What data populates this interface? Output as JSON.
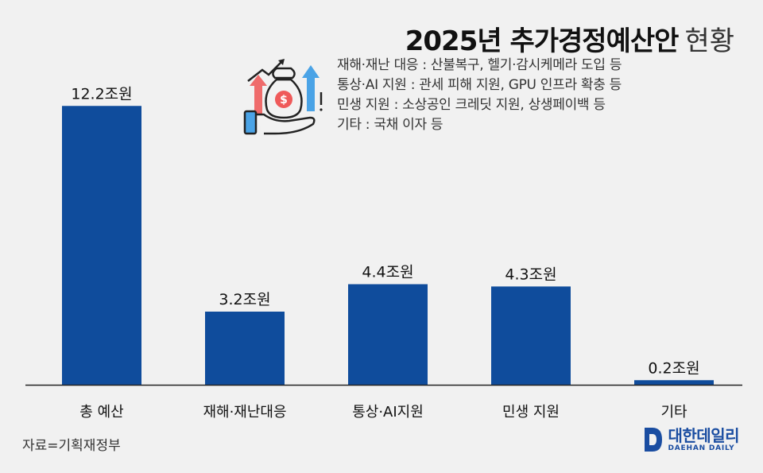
{
  "title": {
    "main": "2025년 추가경정예산안",
    "sub": "현황"
  },
  "notes": [
    "재해·재난 대응 : 산불복구, 헬기·감시케메라 도입 등",
    "통상·AI 지원 : 관세 피해 지원, GPU 인프라 확충 등",
    "민생 지원 : 소상공인 크레딧 지원, 상생페이백 등",
    "기타 : 국채 이자 등"
  ],
  "source": "자료=기획재정부",
  "brand": {
    "ko": "대한데일리",
    "en": "DAEHAN DAILY",
    "color": "#1a4da1"
  },
  "icon": {
    "name": "money-bag-hand-icon"
  },
  "chart_data": {
    "type": "bar",
    "categories": [
      "총 예산",
      "재해·재난대응",
      "통상·AI지원",
      "민생 지원",
      "기타"
    ],
    "values": [
      12.2,
      3.2,
      4.4,
      4.3,
      0.2
    ],
    "value_labels": [
      "12.2조원",
      "3.2조원",
      "4.4조원",
      "4.3조원",
      "0.2조원"
    ],
    "unit": "조원",
    "ylim": [
      0,
      13.6
    ],
    "bar_color": "#0f4c9c",
    "grid": false,
    "legend": false
  }
}
